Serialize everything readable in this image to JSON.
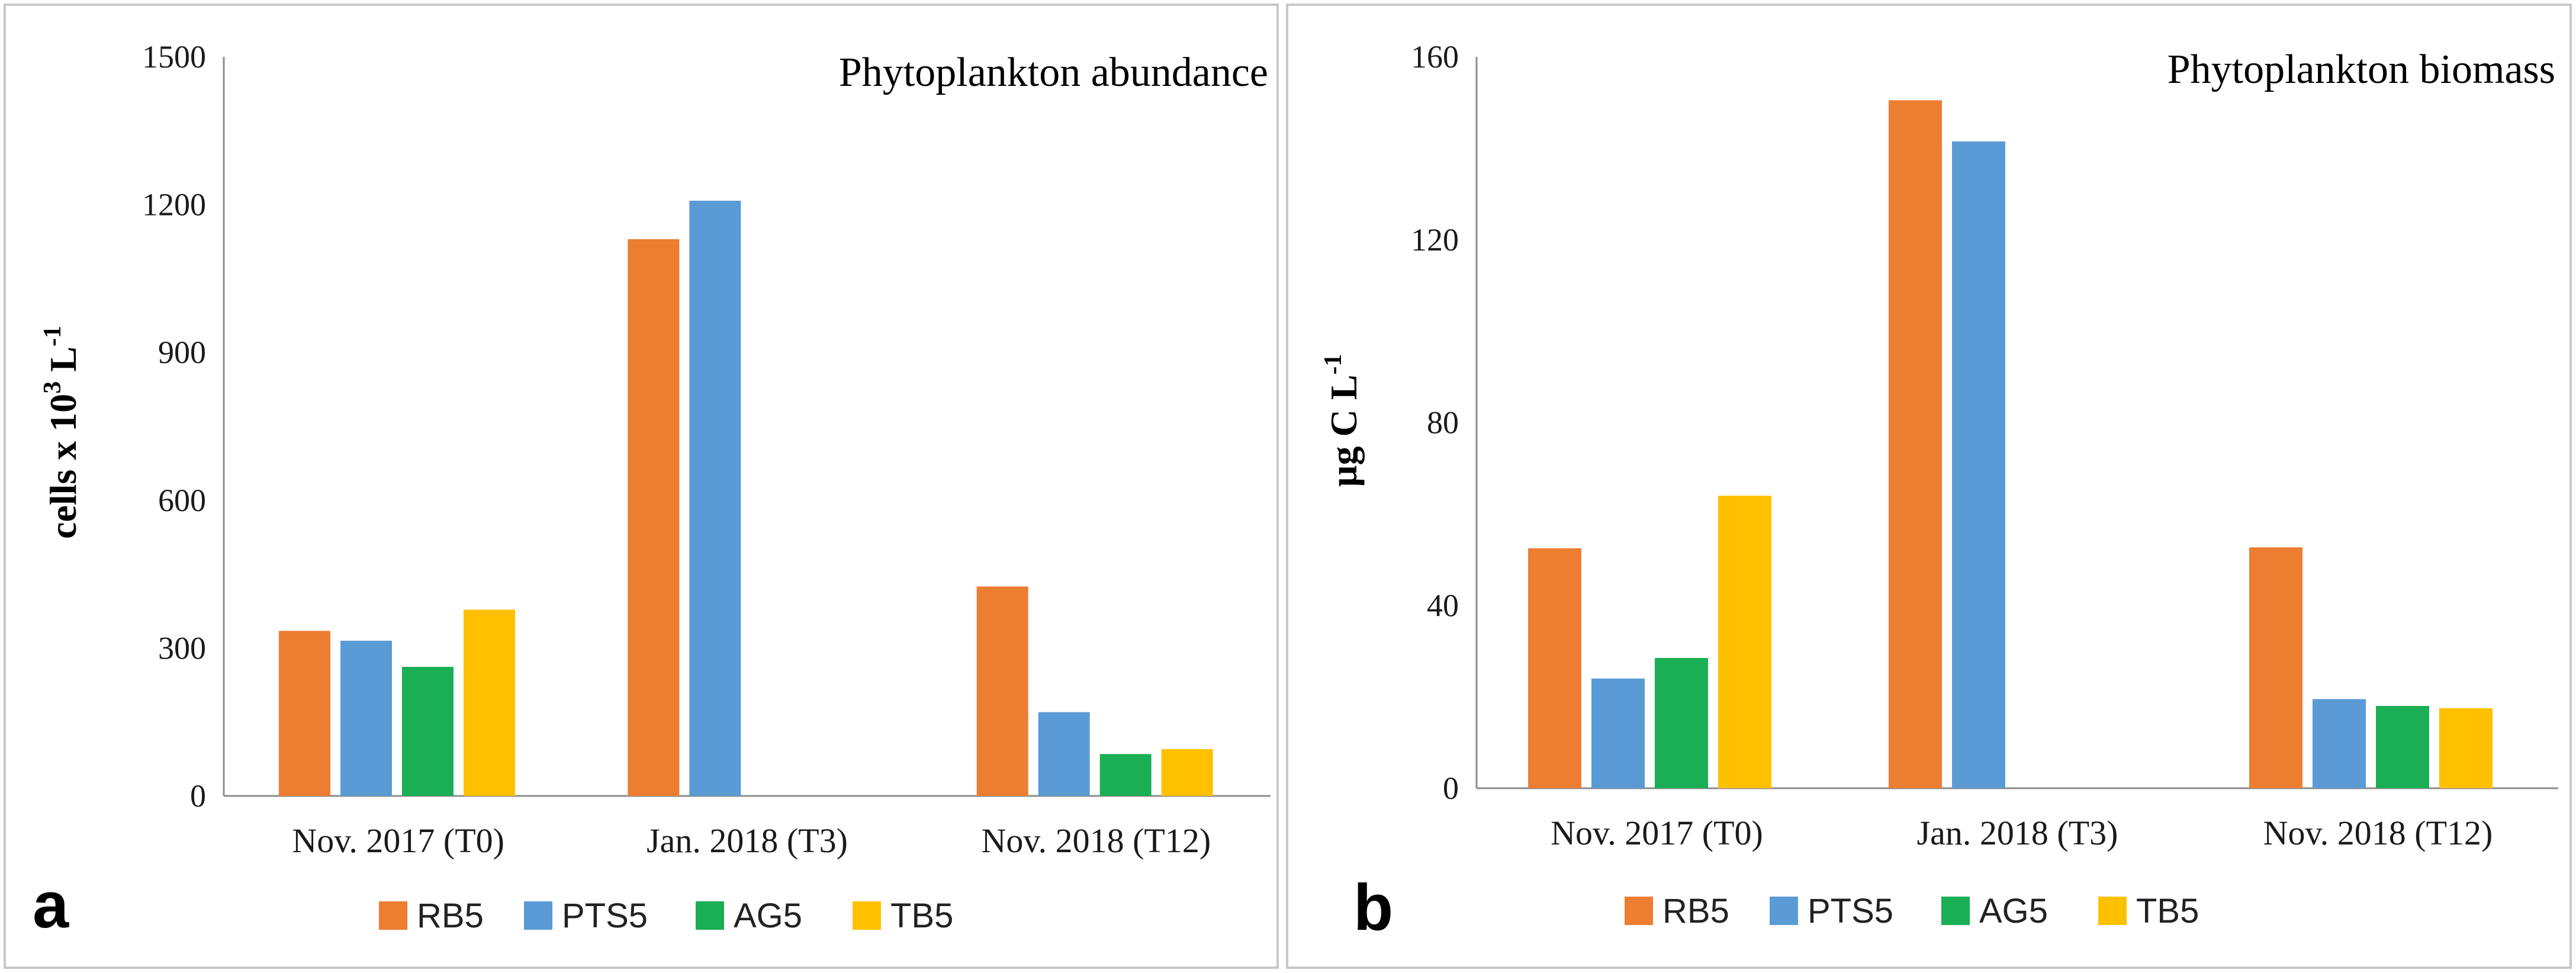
{
  "chart_data": [
    {
      "type": "bar",
      "panel_label": "a",
      "title": "Phytoplankton abundance",
      "ylabel": "cells x 10",
      "ylabel_sup": "3",
      "ylabel_unit": "L",
      "ylabel_unit_sup": "-1",
      "ylim": [
        0,
        1500
      ],
      "yticks": [
        0,
        300,
        600,
        900,
        1200,
        1500
      ],
      "categories": [
        "Nov. 2017 (T0)",
        "Jan. 2018 (T3)",
        "Nov. 2018 (T12)"
      ],
      "series": [
        {
          "name": "RB5",
          "color": "#ED7D31",
          "values": [
            335,
            1130,
            425
          ]
        },
        {
          "name": "PTS5",
          "color": "#5B9BD5",
          "values": [
            315,
            1208,
            170
          ]
        },
        {
          "name": "AG5",
          "color": "#1AAF54",
          "values": [
            262,
            null,
            85
          ]
        },
        {
          "name": "TB5",
          "color": "#FFC000",
          "values": [
            378,
            null,
            95
          ]
        }
      ],
      "legend": "bottom"
    },
    {
      "type": "bar",
      "panel_label": "b",
      "title": "Phytoplankton biomass",
      "ylabel": "µg C  L",
      "ylabel_sup": "-1",
      "ylim": [
        0,
        160
      ],
      "yticks": [
        0,
        40,
        80,
        120,
        160
      ],
      "categories": [
        "Nov. 2017 (T0)",
        "Jan. 2018 (T3)",
        "Nov. 2018 (T12)"
      ],
      "series": [
        {
          "name": "RB5",
          "color": "#ED7D31",
          "values": [
            52.5,
            150.5,
            52.7
          ]
        },
        {
          "name": "PTS5",
          "color": "#5B9BD5",
          "values": [
            24,
            141.5,
            19.5
          ]
        },
        {
          "name": "AG5",
          "color": "#1AAF54",
          "values": [
            28.5,
            null,
            18
          ]
        },
        {
          "name": "TB5",
          "color": "#FFC000",
          "values": [
            64,
            null,
            17.5
          ]
        }
      ],
      "legend": "bottom"
    }
  ]
}
